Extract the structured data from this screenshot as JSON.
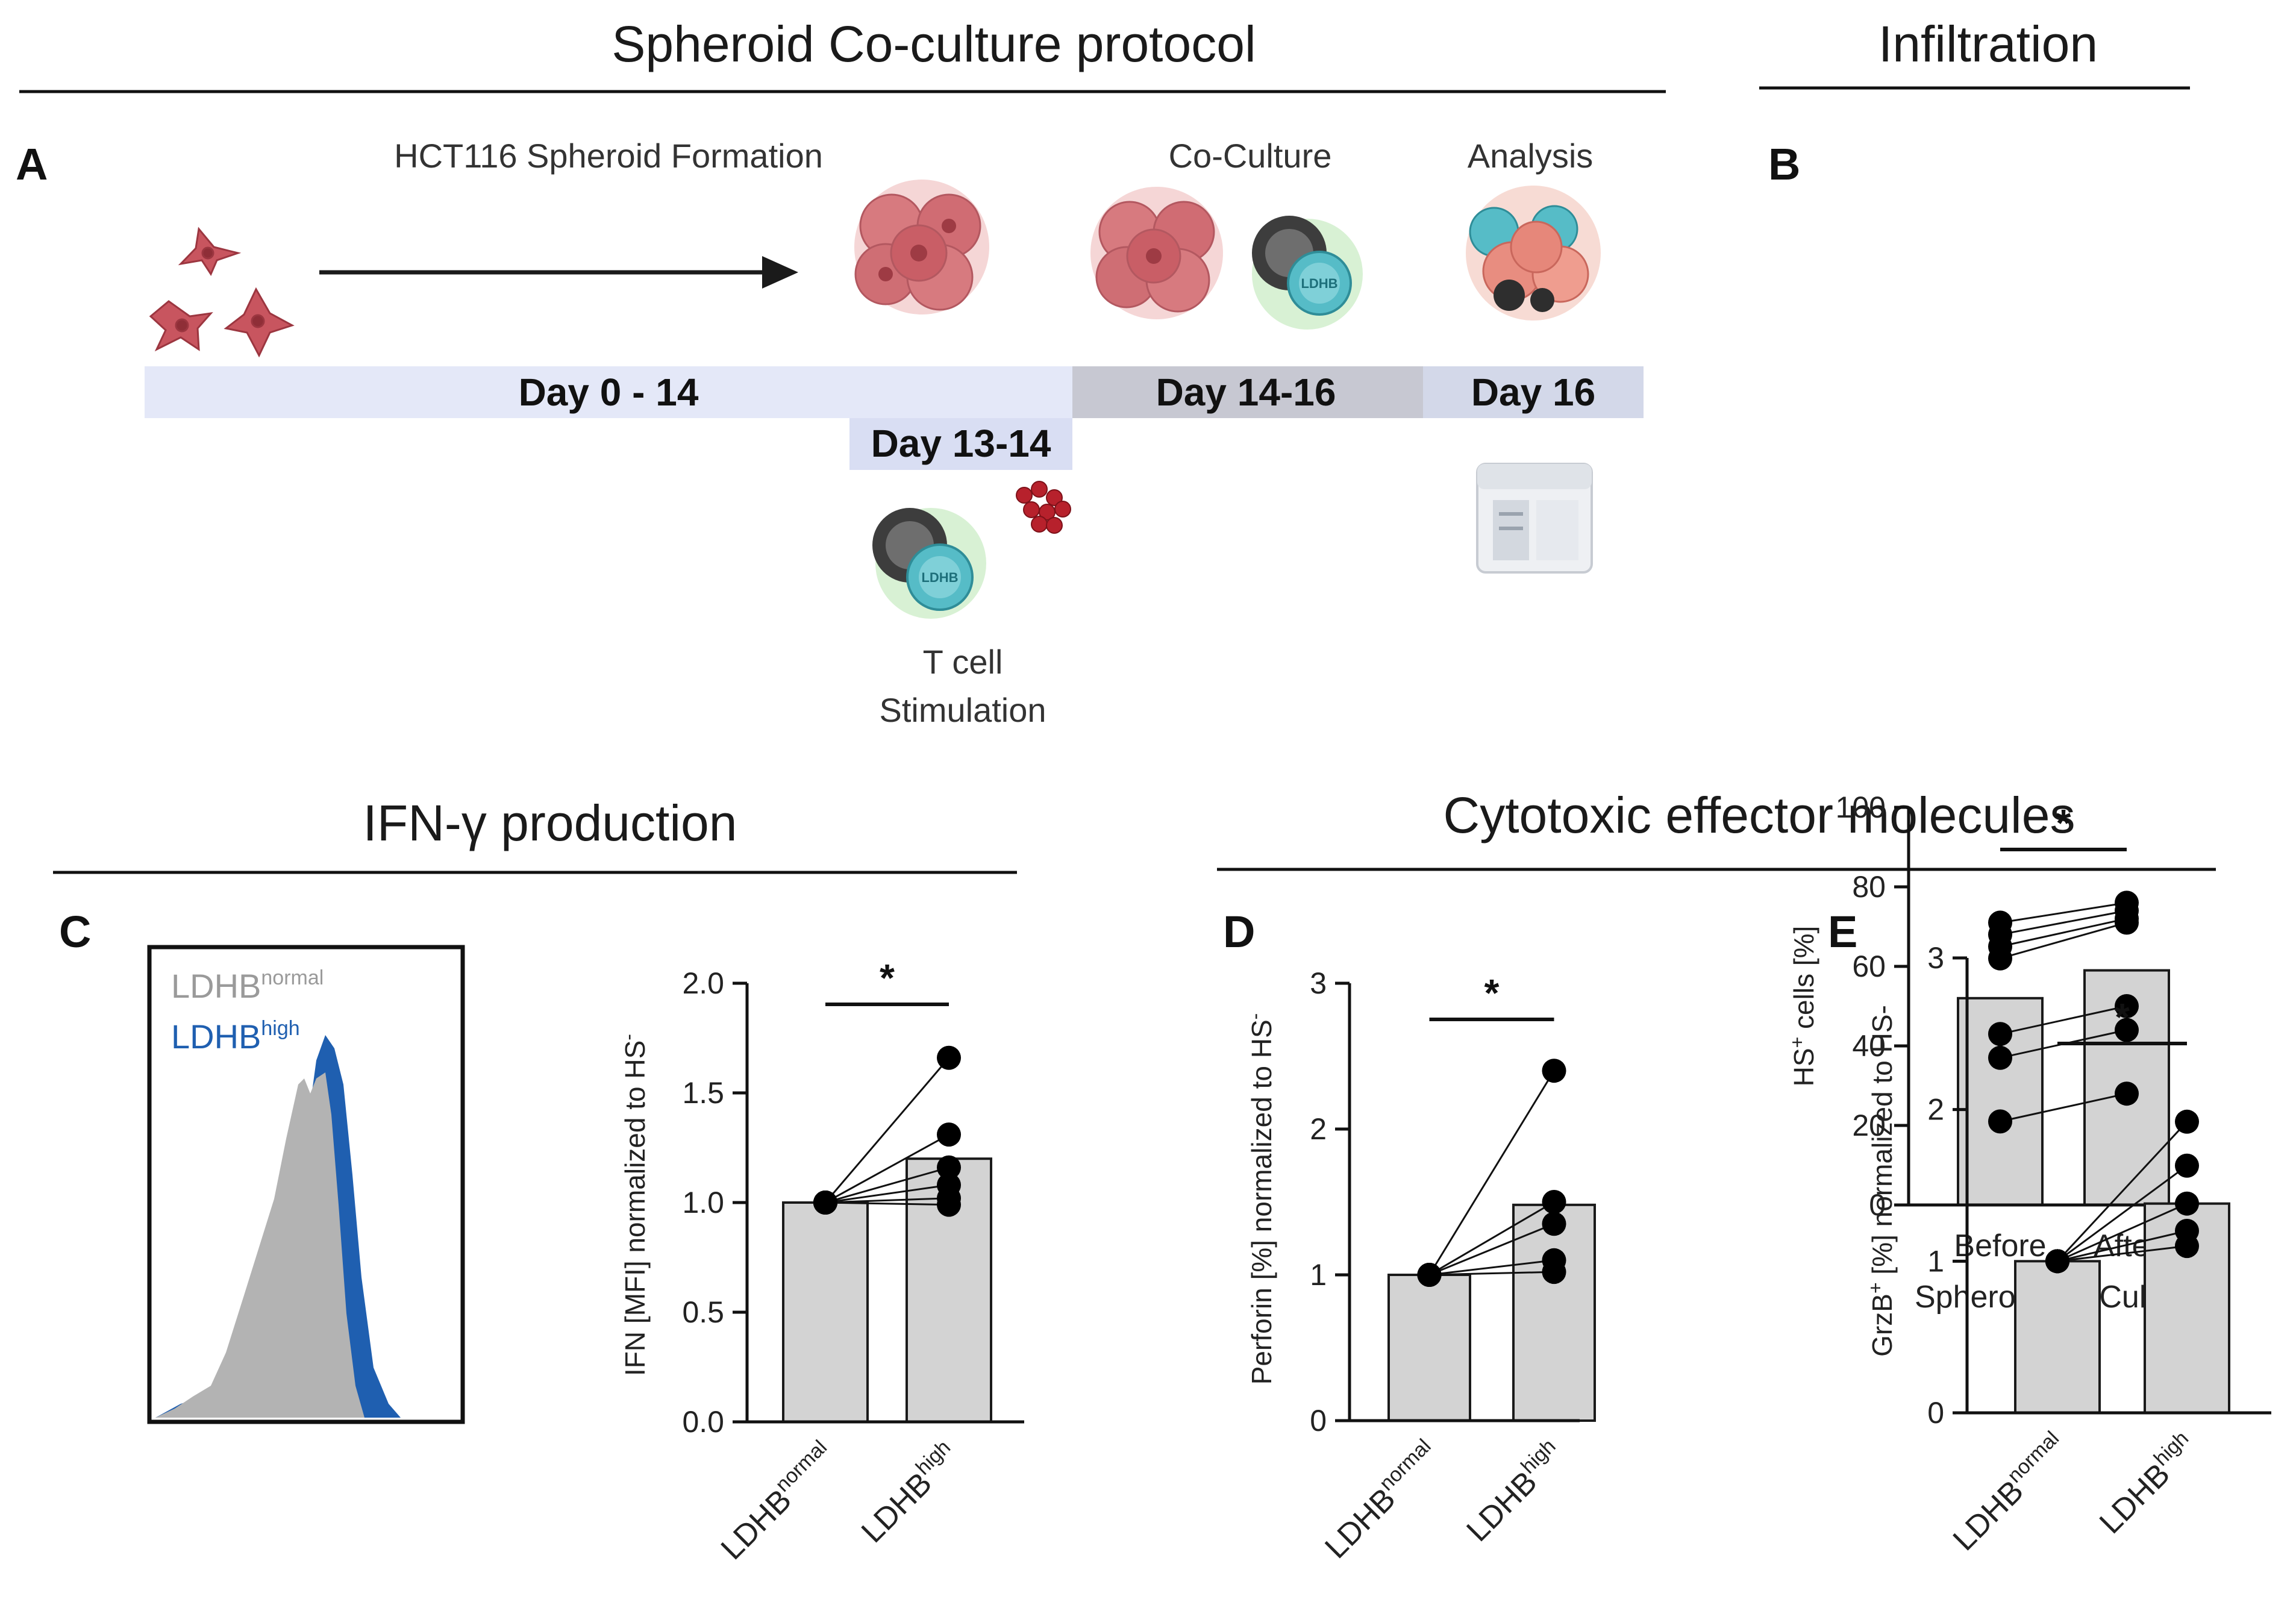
{
  "titles": {
    "protocol": "Spheroid Co-culture protocol",
    "infiltration": "Infiltration",
    "ifn": "IFN-γ production",
    "cytotoxic": "Cytotoxic effector molecules"
  },
  "panels": {
    "A": "A",
    "B": "B",
    "C": "C",
    "D": "D",
    "E": "E"
  },
  "protocol": {
    "stage1": "HCT116 Spheroid Formation",
    "stage2": "Co-Culture",
    "stage3": "Analysis",
    "day1": "Day 0 - 14",
    "day2": "Day 14-16",
    "day3": "Day 16",
    "day_stim": "Day 13-14",
    "tcell_line1": "T cell",
    "tcell_line2": "Stimulation",
    "tcell_badge": "LDHB",
    "colors": {
      "timeline_light": "#e4e8f8",
      "timeline_mid": "#c7c8d2",
      "timeline_last": "#d3d8e9",
      "tumor": "#c8555f",
      "tcell": "#4cb3bf"
    }
  },
  "histogram": {
    "legend_normal_base": "LDHB",
    "legend_normal_sup": "normal",
    "legend_high_base": "LDHB",
    "legend_high_sup": "high",
    "colors": {
      "normal": "#b3b3b3",
      "high": "#1f5fb0"
    }
  },
  "charts": [
    {
      "type": "bar",
      "panel": "B",
      "ylabel_base": "HS",
      "ylabel_sup": "+",
      "ylabel_rest": " cells [%]",
      "yticks": [
        "0",
        "20",
        "40",
        "60",
        "80",
        "100"
      ],
      "ylim": [
        0,
        100
      ],
      "categories": [
        "Before",
        "After"
      ],
      "xlabel": "Spheroid Co-Culture",
      "bar_values": [
        52,
        59
      ],
      "pairs": [
        [
          71,
          76
        ],
        [
          68,
          74
        ],
        [
          65,
          72
        ],
        [
          62,
          71
        ],
        [
          43,
          50
        ],
        [
          37,
          44
        ],
        [
          21,
          28
        ]
      ],
      "significance": "*"
    },
    {
      "type": "bar",
      "panel": "C",
      "ylabel_base": "IFN [MFI] normalized to  HS",
      "ylabel_sup": "-",
      "ylabel_rest": "",
      "yticks": [
        "0.0",
        "0.5",
        "1.0",
        "1.5",
        "2.0"
      ],
      "ylim": [
        0,
        2.0
      ],
      "categories": [
        "LDHB",
        "LDHB"
      ],
      "category_sups": [
        "normal",
        "high"
      ],
      "bar_values": [
        1.0,
        1.2
      ],
      "pairs": [
        [
          1.0,
          1.66
        ],
        [
          1.0,
          1.31
        ],
        [
          1.0,
          1.16
        ],
        [
          1.0,
          1.08
        ],
        [
          1.0,
          1.02
        ],
        [
          1.0,
          0.99
        ]
      ],
      "significance": "*"
    },
    {
      "type": "bar",
      "panel": "D",
      "ylabel_base": "Perforin [%] normalized to HS",
      "ylabel_sup": "-",
      "ylabel_rest": "",
      "yticks": [
        "0",
        "1",
        "2",
        "3"
      ],
      "ylim": [
        0,
        3
      ],
      "categories": [
        "LDHB",
        "LDHB"
      ],
      "category_sups": [
        "normal",
        "high"
      ],
      "bar_values": [
        1.0,
        1.48
      ],
      "pairs": [
        [
          1.0,
          2.4
        ],
        [
          1.0,
          1.5
        ],
        [
          1.0,
          1.35
        ],
        [
          1.0,
          1.1
        ],
        [
          1.0,
          1.02
        ]
      ],
      "significance": "*"
    },
    {
      "type": "bar",
      "panel": "E",
      "ylabel_base": "GrzB",
      "ylabel_sup": "+",
      "ylabel_rest": " [%] normalized to HS-",
      "yticks": [
        "0",
        "1",
        "2",
        "3"
      ],
      "ylim": [
        0,
        3
      ],
      "categories": [
        "LDHB",
        "LDHB"
      ],
      "category_sups": [
        "normal",
        "high"
      ],
      "bar_values": [
        1.0,
        1.38
      ],
      "pairs": [
        [
          1.0,
          1.92
        ],
        [
          1.0,
          1.63
        ],
        [
          1.0,
          1.38
        ],
        [
          1.0,
          1.2
        ],
        [
          1.0,
          1.1
        ]
      ],
      "significance": "*"
    }
  ]
}
